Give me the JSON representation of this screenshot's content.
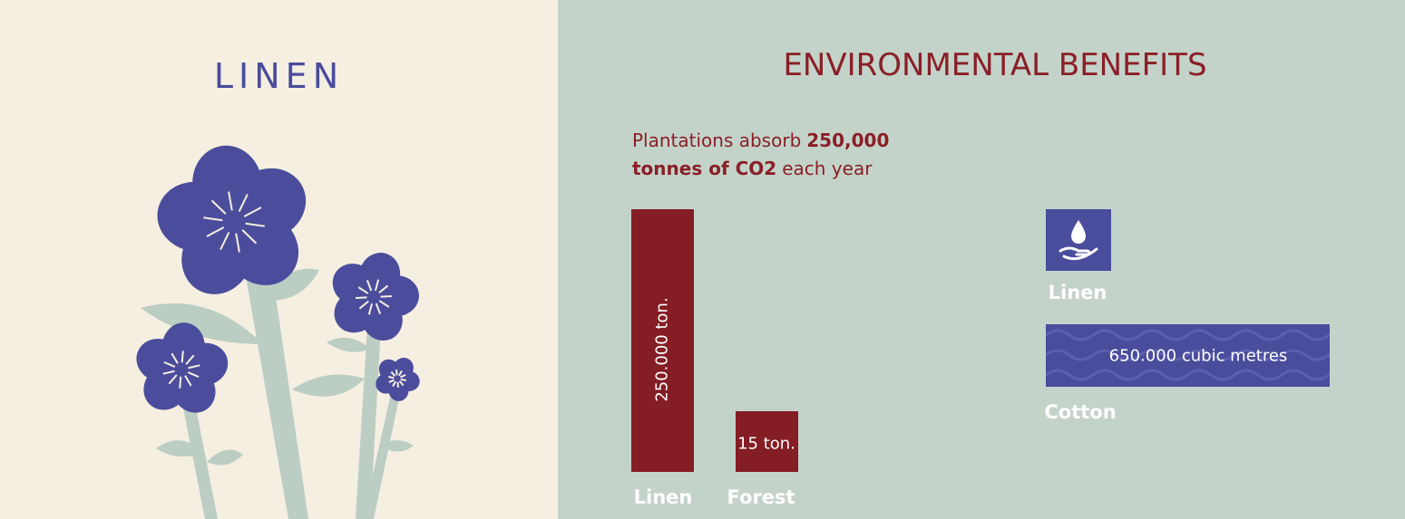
{
  "left": {
    "title": "LINEN"
  },
  "right": {
    "title": "ENVIRONMENTAL BENEFITS",
    "co2_text": {
      "line1": [
        "Plantations absorb",
        "250,000"
      ],
      "line2": [
        "tonnes of CO2",
        "each year"
      ]
    },
    "co2_bars": [
      {
        "label": "Linen",
        "value_label": "250.000 ton."
      },
      {
        "label": "Forest",
        "value_label": "15 ton."
      }
    ],
    "water": [
      {
        "label": "Linen"
      },
      {
        "label": "Cotton",
        "value_label": "650.000 cubic metres"
      }
    ]
  }
}
